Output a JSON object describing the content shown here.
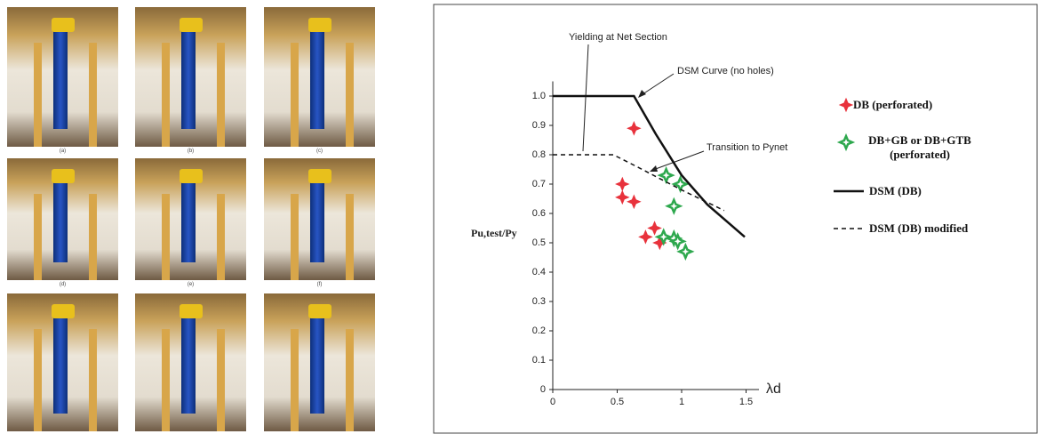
{
  "photos": {
    "captions": [
      "(a)",
      "(b)",
      "(c)",
      "(d)",
      "(e)",
      "(f)"
    ]
  },
  "chart_data": {
    "type": "scatter",
    "y_label": "Pu,test/Py",
    "x_label": "λd",
    "annotations": [
      "Yielding at Net Section",
      "DSM Curve (no holes)",
      "Transition to Pynet"
    ],
    "xlim": [
      0,
      1.6
    ],
    "ylim": [
      0,
      1.05
    ],
    "xticks": [
      0,
      0.5,
      1,
      1.5
    ],
    "yticks": [
      0,
      0.1,
      0.2,
      0.3,
      0.4,
      0.5,
      0.6,
      0.7,
      0.8,
      0.9,
      {
        "value": 1,
        "label": "1.0"
      }
    ],
    "series": [
      {
        "name": "DB (perforated)",
        "kind": "marker",
        "color": "#e8323c",
        "x": [
          0.63,
          0.54,
          0.54,
          0.63,
          0.72,
          0.79,
          0.83
        ],
        "values": [
          0.89,
          0.7,
          0.655,
          0.64,
          0.52,
          0.55,
          0.5
        ]
      },
      {
        "name": "DB+GB or DB+GTB (perforated)",
        "kind": "marker",
        "color": "#2ea84e",
        "x": [
          0.88,
          0.99,
          0.94,
          0.86,
          0.94,
          0.97,
          1.03
        ],
        "values": [
          0.73,
          0.7,
          0.625,
          0.52,
          0.515,
          0.505,
          0.47
        ]
      },
      {
        "name": "DSM (DB)",
        "kind": "solid",
        "color": "#111111",
        "x": [
          0,
          0.63,
          0.8,
          1.0,
          1.2,
          1.49
        ],
        "values": [
          1.0,
          1.0,
          0.87,
          0.73,
          0.63,
          0.52
        ]
      },
      {
        "name": "DSM (DB) modified",
        "kind": "dashed",
        "color": "#111111",
        "x": [
          0,
          0.47,
          0.65,
          1.0,
          1.33
        ],
        "values": [
          0.8,
          0.8,
          0.76,
          0.68,
          0.61
        ]
      }
    ]
  }
}
